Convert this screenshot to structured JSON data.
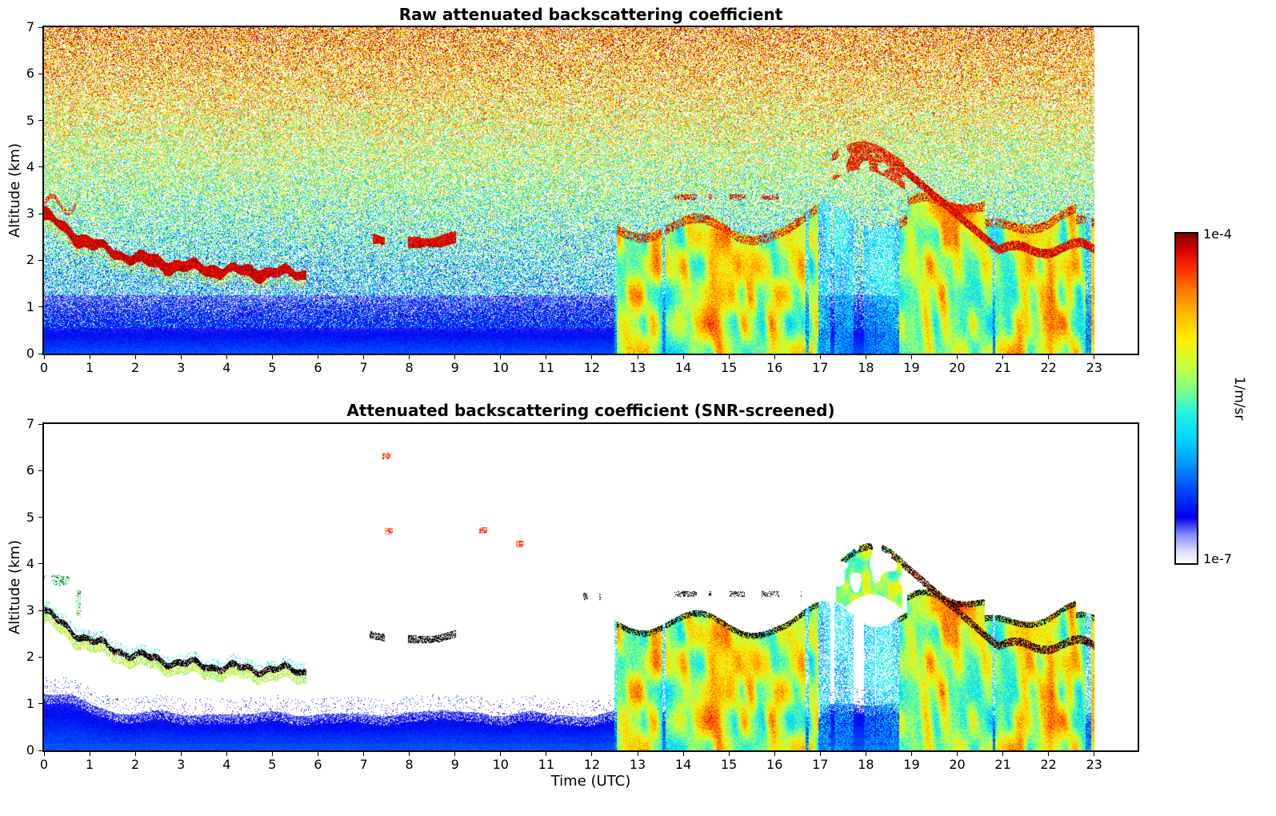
{
  "colorbar": {
    "max_label": "1e-4",
    "min_label": "1e-7",
    "unit": "1/m/sr",
    "vmin": 1e-07,
    "vmax": 0.0001
  },
  "chart_data": [
    {
      "type": "heatmap",
      "title": "Raw attenuated backscattering coefficient",
      "xlabel": "",
      "ylabel": "Altitude (km)",
      "xlim": [
        0,
        23.95
      ],
      "ylim": [
        0,
        7
      ],
      "x_ticks": [
        0,
        1,
        2,
        3,
        4,
        5,
        6,
        7,
        8,
        9,
        10,
        11,
        12,
        13,
        14,
        15,
        16,
        17,
        18,
        19,
        20,
        21,
        22,
        23
      ],
      "y_ticks": [
        0,
        1,
        2,
        3,
        4,
        5,
        6,
        7
      ],
      "colormap": "jet with white floor (white at 1e-7 through blue, cyan, green, yellow, orange to dark red at 1e-4)",
      "scale": "log10",
      "vmin": 1e-07,
      "vmax": 0.0001,
      "unit": "1/m/sr",
      "data_end_time": 23.0,
      "features": [
        {
          "name": "background-noise",
          "description": "Dense random speckle over the whole panel; mean level rises with altitude from blue (~1e-6) near the surface through green near 3 km to orange/red (~1e-4) above 5 km, mixed with white gaps."
        },
        {
          "name": "boundary-layer",
          "altitude_range_km": [
            0,
            0.6
          ],
          "description": "Solid blue layer (~1e-6) below about 0.6 km across the whole day, with dense blue speckle up to ~1.2 km."
        },
        {
          "name": "descending-aerosol-layer",
          "time_range": [
            0,
            5.7
          ],
          "altitude_start_km": 3.0,
          "altitude_end_km": 1.7,
          "description": "Thin dark-red layer descending from ~3 km at 00 UTC to ~1.7 km by 05:30 UTC."
        },
        {
          "name": "broken-cloud-fragments",
          "time_range": [
            7.2,
            10.3
          ],
          "altitude_range_km": [
            2.0,
            2.7
          ],
          "description": "Intermittent dark-red cloud fragments near 2-2.6 km."
        },
        {
          "name": "precipitating-clouds",
          "time_range": [
            12.4,
            23.0
          ],
          "cloud_top_km": [
            2.5,
            3.2
          ],
          "description": "Series of strong yellow/orange cloud and precipitation streaks reaching the surface, with dark-red cloud tops near 2.7-3 km and cyan fall streaks between them."
        },
        {
          "name": "elevated-cloud",
          "time_range": [
            17.3,
            18.8
          ],
          "altitude_range_km": [
            3.6,
            4.3
          ],
          "description": "Dark-red cloud layer near 4 km."
        },
        {
          "name": "descending-cloud-base",
          "time_range": [
            18.5,
            23.0
          ],
          "altitude_start_km": 4.2,
          "altitude_end_km": 2.0,
          "description": "Dark-red cloud base descending from ~4.2 km at 18:30 UTC to ~2 km by 21 UTC, then undulating near 2-2.3 km until 23 UTC."
        },
        {
          "name": "no-data-gap",
          "time_range": [
            23.0,
            23.95
          ],
          "description": "White (no data) after 23 UTC."
        }
      ]
    },
    {
      "type": "heatmap",
      "title": "Attenuated backscattering coefficient (SNR-screened)",
      "xlabel": "Time (UTC)",
      "ylabel": "Altitude (km)",
      "xlim": [
        0,
        23.95
      ],
      "ylim": [
        0,
        7
      ],
      "x_ticks": [
        0,
        1,
        2,
        3,
        4,
        5,
        6,
        7,
        8,
        9,
        10,
        11,
        12,
        13,
        14,
        15,
        16,
        17,
        18,
        19,
        20,
        21,
        22,
        23
      ],
      "y_ticks": [
        0,
        1,
        2,
        3,
        4,
        5,
        6,
        7
      ],
      "colormap": "jet with white floor (white at 1e-7 through blue, cyan, green, yellow, orange to dark red at 1e-4); black marks saturated cloud returns",
      "scale": "log10",
      "vmin": 1e-07,
      "vmax": 0.0001,
      "unit": "1/m/sr",
      "data_end_time": 23.0,
      "features": [
        {
          "name": "screened-background",
          "description": "All low-SNR noise removed; background rendered white."
        },
        {
          "name": "boundary-layer",
          "altitude_range_km": [
            0,
            0.9
          ],
          "description": "Blue aerosol layer below ~0.8 km all day, deeper (to ~1.4 km, light periwinkle speckle) before 01:30 UTC and fuzzier/higher between 17 and 19:30 UTC."
        },
        {
          "name": "descending-aerosol-layer",
          "time_range": [
            0,
            5.7
          ],
          "altitude_start_km": 3.0,
          "altitude_end_km": 1.7,
          "description": "Descending layer with black (cloud-flagged) top and green/yellow/cyan body."
        },
        {
          "name": "early-wisps",
          "time_range": [
            0,
            0.8
          ],
          "altitude_range_km": [
            2.7,
            3.7
          ],
          "description": "Green/cyan wisps with black dots near 3-3.7 km just after 00 UTC."
        },
        {
          "name": "broken-cloud-fragments",
          "time_range": [
            6.9,
            11.7
          ],
          "altitude_range_km": [
            1.9,
            2.7
          ],
          "description": "Black cloud-base dashes near 2-2.6 km."
        },
        {
          "name": "isolated-high-returns",
          "points_time_alt_km": [
            [
              7.5,
              6.3
            ],
            [
              7.55,
              4.7
            ],
            [
              9.6,
              4.7
            ],
            [
              10.4,
              4.4
            ]
          ],
          "description": "A few isolated red pixels between 4.4 and 6.3 km."
        },
        {
          "name": "precipitating-clouds",
          "time_range": [
            12.4,
            23.0
          ],
          "cloud_top_km": [
            2.5,
            3.2
          ],
          "description": "Yellow/orange precipitation streaks reaching the surface with black-flagged cloud tops near 2.7-3 km; white gaps between streaks, notably around 17-18.5 UTC."
        },
        {
          "name": "elevated-cloud",
          "time_range": [
            17.4,
            18.8
          ],
          "altitude_range_km": [
            3.3,
            4.5
          ],
          "description": "Green/yellow cloud near 4 km with black speckled top."
        },
        {
          "name": "descending-cloud-base",
          "time_range": [
            18.5,
            23.0
          ],
          "altitude_start_km": 4.2,
          "altitude_end_km": 2.0,
          "description": "Black/orange cloud base descending from ~4.2 km at 18:30 UTC to ~2 km by 21 UTC, then undulating near 2-2.3 km until 23 UTC."
        },
        {
          "name": "no-data-gap",
          "time_range": [
            23.0,
            23.95
          ],
          "description": "White (no data) after 23 UTC."
        }
      ]
    }
  ]
}
